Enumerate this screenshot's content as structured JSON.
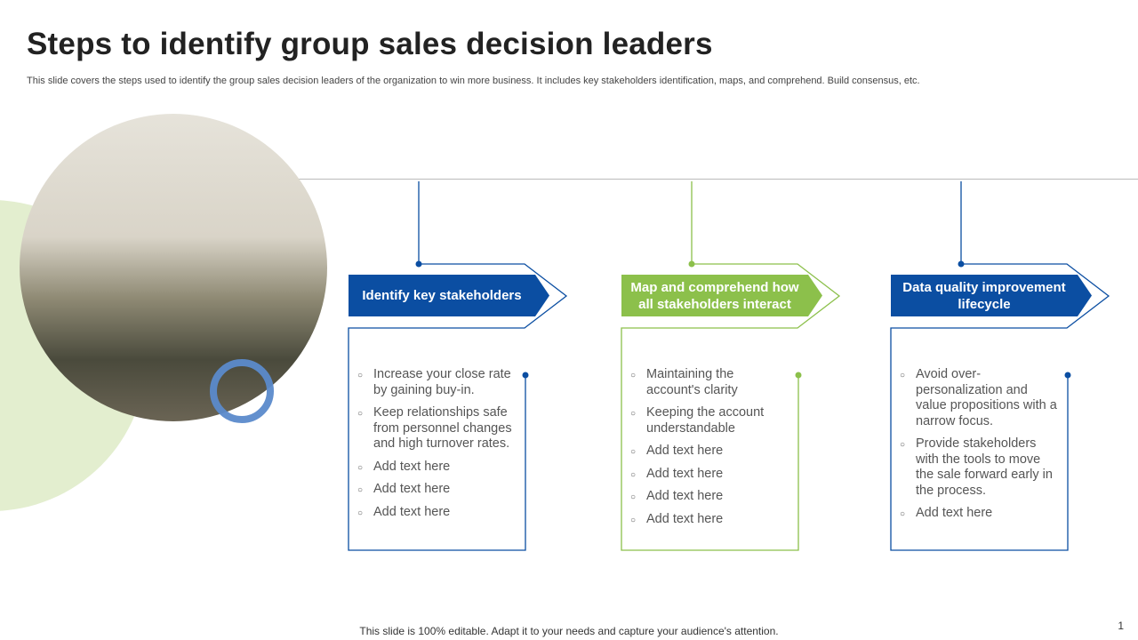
{
  "title": "Steps to identify group sales decision leaders",
  "subtitle": "This slide covers the steps used to identify the group sales decision leaders of the organization to win more business. It includes key stakeholders identification, maps, and comprehend. Build consensus, etc.",
  "footer": "This slide is 100% editable. Adapt it to your needs and capture your audience's attention.",
  "page_number": "1",
  "colors": {
    "blue": "#0b4ea2",
    "green": "#8cc04b",
    "line_gray": "#bbbbbb",
    "blob_green": "#e3eecf",
    "ring_blue": "#5b8acb"
  },
  "bullet_icon": "hollow-circle",
  "steps": [
    {
      "heading": "Identify key stakeholders",
      "color": "#0b4ea2",
      "bullets": [
        "Increase your close rate by gaining buy-in.",
        "Keep relationships safe from personnel changes and high turnover rates.",
        "Add text here",
        "Add text here",
        "Add text here"
      ]
    },
    {
      "heading": "Map and comprehend how all stakeholders interact",
      "color": "#8cc04b",
      "bullets": [
        "Maintaining the account's clarity",
        "Keeping the account understandable",
        "Add text here",
        "Add text here",
        "Add text here",
        "Add text here"
      ]
    },
    {
      "heading": "Data quality improvement lifecycle",
      "color": "#0b4ea2",
      "bullets": [
        "Avoid over-personalization and value propositions with a narrow focus.",
        "Provide stakeholders with the tools to move the sale forward early in the process.",
        "Add text here"
      ]
    }
  ]
}
